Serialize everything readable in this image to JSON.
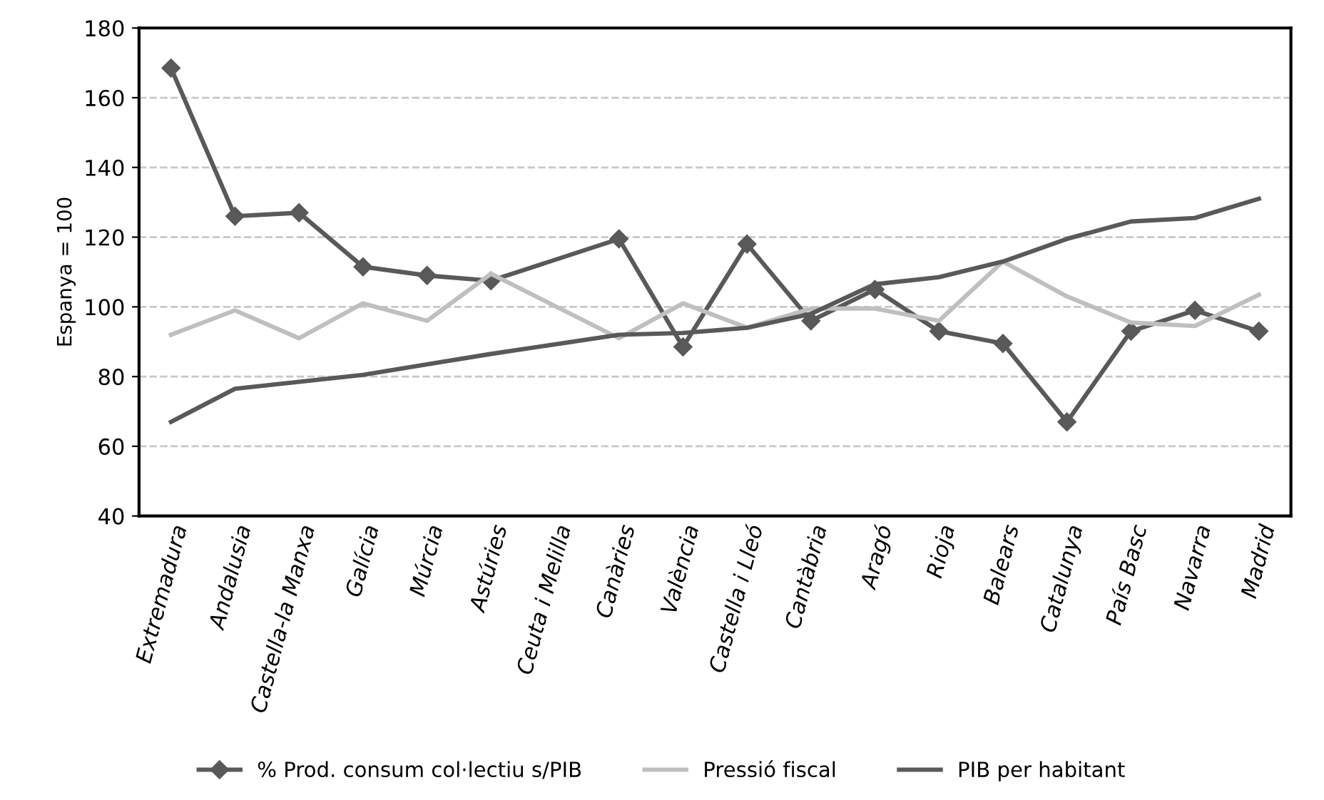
{
  "chart_data": {
    "type": "line",
    "ylabel": "Espanya = 100",
    "categories": [
      "Extremadura",
      "Andalusia",
      "Castella-la Manxa",
      "Galícia",
      "Múrcia",
      "Astúries",
      "Ceuta i Melilla",
      "Canàries",
      "València",
      "Castella i Lleó",
      "Cantàbria",
      "Aragó",
      "Rioja",
      "Balears",
      "Catalunya",
      "País Basc",
      "Navarra",
      "Madrid"
    ],
    "series": [
      {
        "name": "% Prod. consum col·lectiu s/PIB",
        "color": "#595959",
        "marker": "diamond",
        "values": [
          168.5,
          126,
          127,
          111.5,
          109,
          107.5,
          null,
          119.5,
          88.5,
          118,
          96,
          105,
          93,
          89.5,
          67,
          93,
          99,
          93
        ]
      },
      {
        "name": "Pressió fiscal",
        "color": "#bfbfbf",
        "marker": "none",
        "values": [
          92,
          99,
          91,
          101,
          96,
          109.5,
          null,
          91,
          101,
          94,
          99.5,
          99.5,
          96,
          113,
          103,
          95.5,
          94.5,
          103.5
        ]
      },
      {
        "name": "PIB per habitant",
        "color": "#595959",
        "marker": "none",
        "values": [
          67,
          76.5,
          78.5,
          80.5,
          83.5,
          86.5,
          null,
          92,
          92.5,
          94,
          98,
          106.5,
          108.5,
          113,
          119.5,
          124.5,
          125.5,
          131
        ]
      }
    ],
    "ylim": [
      40,
      180
    ],
    "yticks": [
      40,
      60,
      80,
      100,
      120,
      140,
      160,
      180
    ],
    "grid": "y",
    "legend": "bottom"
  }
}
